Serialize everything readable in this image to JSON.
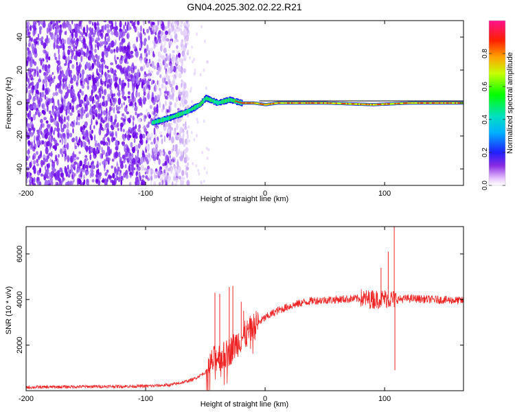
{
  "figure": {
    "title": "GN04.2025.302.02.22.R21"
  },
  "chart_data": [
    {
      "type": "heatmap",
      "title": "GN04.2025.302.02.22.R21",
      "xlabel": "Height of straight line (km)",
      "ylabel": "Frequency (Hz)",
      "xlim": [
        -200,
        166
      ],
      "ylim": [
        -50,
        50
      ],
      "xticks": [
        -200,
        -100,
        0,
        100
      ],
      "yticks": [
        -40,
        -20,
        0,
        20,
        40
      ],
      "xtick_labels": [
        "-200",
        "-100",
        "0",
        "100"
      ],
      "ytick_labels": [
        "-40",
        "-20",
        "0",
        "20",
        "40"
      ],
      "colorbar": {
        "label": "Normalized spectral amplitude",
        "range": [
          0,
          1
        ],
        "ticks": [
          0,
          0.2,
          0.4,
          0.6,
          0.8
        ],
        "tick_labels": [
          "0.0",
          "0.2",
          "0.4",
          "0.6",
          "0.8"
        ]
      },
      "signal_trace": {
        "description_points_km_hz": [
          [
            -95,
            -12
          ],
          [
            -80,
            -9
          ],
          [
            -65,
            -5
          ],
          [
            -55,
            -1
          ],
          [
            -50,
            3
          ],
          [
            -40,
            0
          ],
          [
            -30,
            2
          ],
          [
            -20,
            0
          ],
          [
            -10,
            0
          ],
          [
            0,
            -1
          ],
          [
            10,
            0
          ],
          [
            50,
            0
          ],
          [
            90,
            -1
          ],
          [
            120,
            0
          ],
          [
            166,
            0
          ]
        ],
        "noise_region_km": [
          -200,
          -70
        ]
      }
    },
    {
      "type": "line",
      "xlabel": "Height of straight line (km)",
      "ylabel": "SNR (10 * v/v)",
      "xlim": [
        -200,
        166
      ],
      "ylim": [
        0,
        7200
      ],
      "xticks": [
        -200,
        -100,
        0,
        100
      ],
      "yticks": [
        2000,
        4000,
        6000
      ],
      "xtick_labels": [
        "-200",
        "-100",
        "0",
        "100"
      ],
      "ytick_labels": [
        "2000",
        "4000",
        "6000"
      ],
      "series": [
        {
          "name": "SNR",
          "color": "#ee2222",
          "envelope": {
            "x": [
              -200,
              -150,
              -100,
              -80,
              -70,
              -60,
              -50,
              -45,
              -40,
              -35,
              -30,
              -25,
              -20,
              -15,
              -10,
              0,
              10,
              20,
              30,
              40,
              60,
              80,
              90,
              100,
              110,
              120,
              140,
              166
            ],
            "y": [
              150,
              180,
              200,
              250,
              350,
              500,
              800,
              1200,
              1500,
              1500,
              1700,
              2000,
              2300,
              2500,
              2800,
              3200,
              3500,
              3700,
              3850,
              3950,
              4000,
              4050,
              4000,
              4050,
              4000,
              4050,
              4000,
              3950
            ]
          },
          "spikes": [
            [
              -42,
              4300
            ],
            [
              -38,
              4250
            ],
            [
              -30,
              4550
            ],
            [
              -27,
              4600
            ],
            [
              -20,
              3900
            ],
            [
              -18,
              3500
            ],
            [
              90,
              4400
            ],
            [
              97,
              5400
            ],
            [
              103,
              6100
            ],
            [
              108,
              7200
            ],
            [
              108.6,
              900
            ]
          ]
        }
      ]
    }
  ]
}
